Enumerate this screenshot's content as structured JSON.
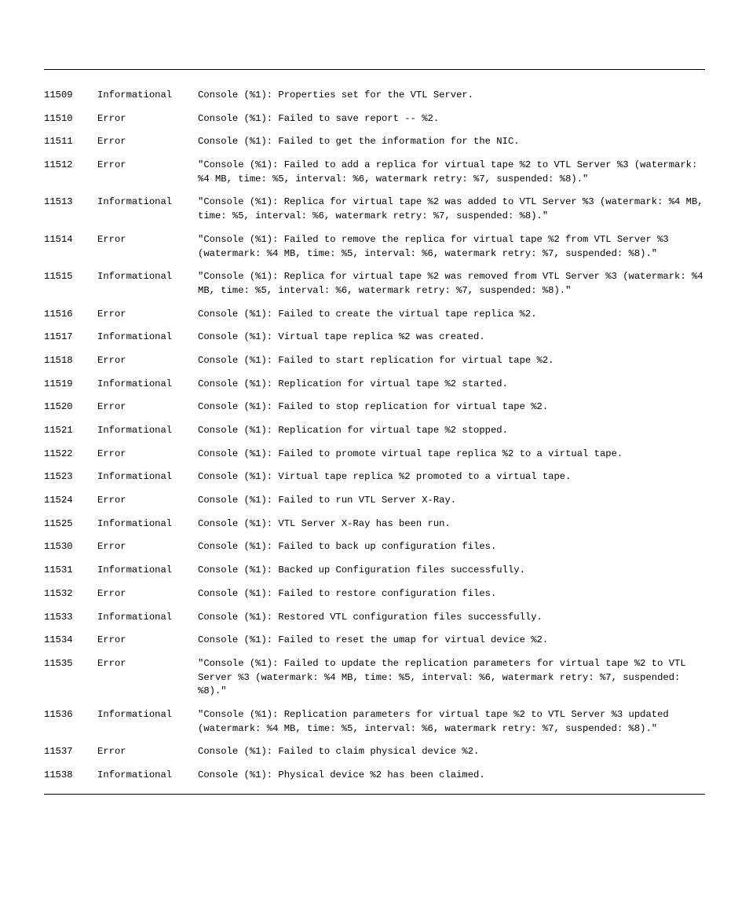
{
  "table": {
    "font_family": "Courier New",
    "font_size_pt": 9,
    "text_color": "#000000",
    "background_color": "#ffffff",
    "rule_color": "#000000",
    "rows": [
      {
        "id": "11509",
        "severity": "Informational",
        "message": "Console (%1): Properties set for the VTL Server."
      },
      {
        "id": "11510",
        "severity": "Error",
        "message": "Console (%1): Failed to save report -- %2."
      },
      {
        "id": "11511",
        "severity": "Error",
        "message": "Console (%1): Failed to get the information for the NIC."
      },
      {
        "id": "11512",
        "severity": "Error",
        "message": "\"Console (%1): Failed to add a replica for virtual tape %2 to VTL Server %3 (watermark: %4 MB, time: %5, interval: %6, watermark retry: %7, suspended: %8).\""
      },
      {
        "id": "11513",
        "severity": "Informational",
        "message": "\"Console (%1): Replica for virtual tape %2 was added to VTL Server %3 (watermark: %4 MB, time: %5, interval: %6, watermark retry: %7, suspended: %8).\""
      },
      {
        "id": "11514",
        "severity": "Error",
        "message": "\"Console (%1): Failed to remove the replica for virtual tape %2 from VTL Server %3 (watermark: %4 MB, time: %5, interval: %6, watermark retry: %7, suspended: %8).\""
      },
      {
        "id": "11515",
        "severity": "Informational",
        "message": "\"Console (%1): Replica for virtual tape %2 was removed from VTL Server %3 (watermark: %4 MB, time: %5, interval: %6, watermark retry: %7, suspended: %8).\""
      },
      {
        "id": "11516",
        "severity": "Error",
        "message": "Console (%1): Failed to create the virtual tape replica %2."
      },
      {
        "id": "11517",
        "severity": "Informational",
        "message": "Console (%1): Virtual tape replica %2 was created."
      },
      {
        "id": "11518",
        "severity": "Error",
        "message": "Console (%1): Failed to start replication for virtual tape %2."
      },
      {
        "id": "11519",
        "severity": "Informational",
        "message": "Console (%1): Replication for virtual tape %2 started."
      },
      {
        "id": "11520",
        "severity": "Error",
        "message": "Console (%1): Failed to stop replication for virtual tape %2."
      },
      {
        "id": "11521",
        "severity": "Informational",
        "message": "Console (%1): Replication for virtual tape %2 stopped."
      },
      {
        "id": "11522",
        "severity": "Error",
        "message": "Console (%1): Failed to promote virtual tape replica %2 to a virtual tape."
      },
      {
        "id": "11523",
        "severity": "Informational",
        "message": "Console (%1): Virtual tape replica %2 promoted to a virtual tape."
      },
      {
        "id": "11524",
        "severity": "Error",
        "message": "Console (%1): Failed to run VTL Server X-Ray."
      },
      {
        "id": "11525",
        "severity": "Informational",
        "message": "Console (%1): VTL Server X-Ray has been run."
      },
      {
        "id": "11530",
        "severity": "Error",
        "message": "Console (%1): Failed to back up configuration files."
      },
      {
        "id": "11531",
        "severity": "Informational",
        "message": "Console (%1): Backed up Configuration files successfully."
      },
      {
        "id": "11532",
        "severity": "Error",
        "message": "Console (%1): Failed to restore configuration files."
      },
      {
        "id": "11533",
        "severity": "Informational",
        "message": "Console (%1): Restored VTL configuration files successfully."
      },
      {
        "id": "11534",
        "severity": "Error",
        "message": "Console (%1): Failed to reset the umap for virtual device %2."
      },
      {
        "id": "11535",
        "severity": "Error",
        "message": "\"Console (%1): Failed to update the replication parameters for virtual tape %2 to VTL Server %3 (watermark: %4 MB, time: %5, interval: %6, watermark retry: %7, suspended: %8).\""
      },
      {
        "id": "11536",
        "severity": "Informational",
        "message": "\"Console (%1): Replication parameters for virtual tape %2 to VTL Server %3 updated (watermark: %4 MB, time: %5, interval: %6, watermark retry: %7, suspended: %8).\""
      },
      {
        "id": "11537",
        "severity": "Error",
        "message": "Console (%1): Failed to claim physical device %2."
      },
      {
        "id": "11538",
        "severity": "Informational",
        "message": "Console (%1): Physical device %2 has been claimed."
      }
    ]
  }
}
